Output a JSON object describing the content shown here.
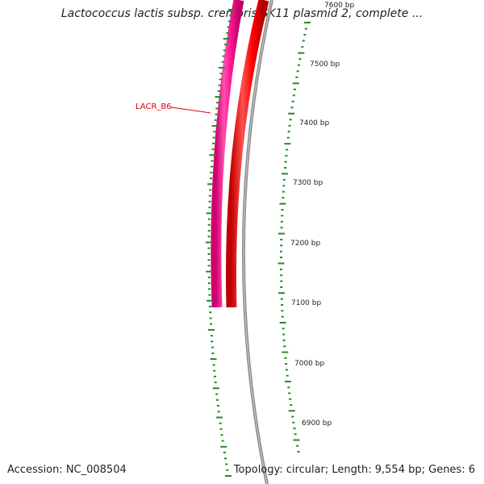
{
  "title": "Lactococcus lactis subsp. cremoris SK11 plasmid 2, complete ...",
  "accession": "Accession: NC_008504",
  "summary": "Topology: circular; Length: 9,554 bp; Genes: 6",
  "gene_label": "LACR_B6",
  "bp_labels": [
    "7600 bp",
    "7500 bp",
    "7400 bp",
    "7300 bp",
    "7200 bp",
    "7100 bp",
    "7000 bp",
    "6900 bp"
  ],
  "colors": {
    "gene_pink": "#ff1493",
    "gene_red": "#ff0000",
    "backbone": "#808080",
    "ticks": "#228b22",
    "label_line": "#e00000"
  }
}
